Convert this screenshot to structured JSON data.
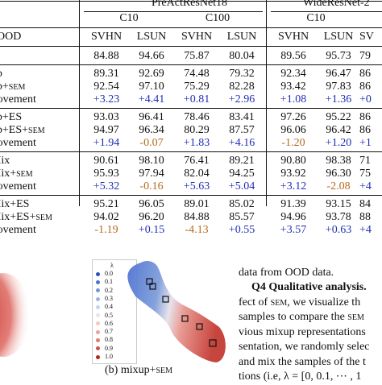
{
  "table": {
    "group_headers": [
      "PreActResNet18",
      "WideResNet-2"
    ],
    "sub_headers": [
      "C10",
      "C100",
      "C10"
    ],
    "col_label": "OOD",
    "columns": [
      "SVHN",
      "LSUN",
      "SVHN",
      "LSUN",
      "SVHN",
      "LSUN",
      "SV"
    ],
    "rows": [
      {
        "label": "RM",
        "values": [
          "84.88",
          "94.66",
          "75.87",
          "80.04",
          "89.56",
          "95.73",
          "79"
        ],
        "kind": "normal"
      },
      {
        "label": "ixup",
        "values": [
          "89.31",
          "92.69",
          "74.48",
          "79.32",
          "92.34",
          "96.47",
          "86"
        ],
        "kind": "normal"
      },
      {
        "label": "ixup+SEM",
        "values": [
          "92.54",
          "97.10",
          "75.29",
          "82.28",
          "93.42",
          "97.83",
          "86"
        ],
        "kind": "normal"
      },
      {
        "label": "nprovement",
        "values": [
          "+3.23",
          "+4.41",
          "+0.81",
          "+2.96",
          "+1.08",
          "+1.36",
          "+0"
        ],
        "kind": "improvement",
        "colors": [
          "blue",
          "blue",
          "blue",
          "blue",
          "blue",
          "blue",
          "blue"
        ]
      },
      {
        "label": "ixup+ES",
        "values": [
          "93.03",
          "96.41",
          "78.46",
          "83.41",
          "97.26",
          "95.22",
          "86"
        ],
        "kind": "normal"
      },
      {
        "label": "ixup+ES+SEM",
        "values": [
          "94.97",
          "96.34",
          "80.29",
          "87.57",
          "96.06",
          "96.42",
          "86"
        ],
        "kind": "normal"
      },
      {
        "label": "nprovement",
        "values": [
          "+1.94",
          "-0.07",
          "+1.83",
          "+4.16",
          "-1.20",
          "+1.20",
          "+1"
        ],
        "kind": "improvement",
        "colors": [
          "blue",
          "orange",
          "blue",
          "blue",
          "orange",
          "blue",
          "blue"
        ]
      },
      {
        "label": "utMix",
        "values": [
          "90.61",
          "98.10",
          "76.41",
          "89.21",
          "90.80",
          "98.38",
          "71"
        ],
        "kind": "normal"
      },
      {
        "label": "utMix+SEM",
        "values": [
          "95.93",
          "97.94",
          "82.04",
          "94.25",
          "93.92",
          "96.30",
          "75"
        ],
        "kind": "normal"
      },
      {
        "label": "nprovement",
        "values": [
          "+5.32",
          "-0.16",
          "+5.63",
          "+5.04",
          "+3.12",
          "-2.08",
          "+4"
        ],
        "kind": "improvement",
        "colors": [
          "blue",
          "orange",
          "blue",
          "blue",
          "blue",
          "orange",
          "blue"
        ]
      },
      {
        "label": "utMix+ES",
        "values": [
          "95.21",
          "96.05",
          "89.01",
          "85.02",
          "91.39",
          "93.15",
          "84"
        ],
        "kind": "normal"
      },
      {
        "label": "utMix+ES+SEM",
        "values": [
          "94.02",
          "96.20",
          "84.88",
          "85.57",
          "94.96",
          "93.78",
          "88"
        ],
        "kind": "normal"
      },
      {
        "label": "nprovement",
        "values": [
          "-1.19",
          "+0.15",
          "-4.13",
          "+0.55",
          "+3.57",
          "+0.63",
          "+4"
        ],
        "kind": "improvement",
        "colors": [
          "orange",
          "blue",
          "orange",
          "blue",
          "blue",
          "blue",
          "blue"
        ]
      }
    ]
  },
  "figure": {
    "legend_title": "λ",
    "legend_labels": [
      "0.0",
      "0.1",
      "0.2",
      "0.3",
      "0.4",
      "0.5",
      "0.6",
      "0.7",
      "0.8",
      "0.9",
      "1.0"
    ],
    "legend_colors": [
      "#2a50c0",
      "#4d74d0",
      "#7395da",
      "#9bb4e4",
      "#c3d2ee",
      "#e9e4e8",
      "#f0c8c4",
      "#e9a49d",
      "#dd7d74",
      "#cc5149",
      "#b3261f"
    ],
    "caption": "(b) mixup+SEM"
  },
  "text": {
    "line1": "data from OOD data.",
    "q4_bold": "Q4 Qualitative analysis.",
    "line3": "fect of SEM, we visualize th",
    "line4": "samples to compare the SEM",
    "line5": "vious mixup representations",
    "line6": "sentation, we randomly selec",
    "line7": "and mix the samples of the t",
    "line8": "tions (i.e, λ = [0, 0.1, ⋯ , 1"
  }
}
